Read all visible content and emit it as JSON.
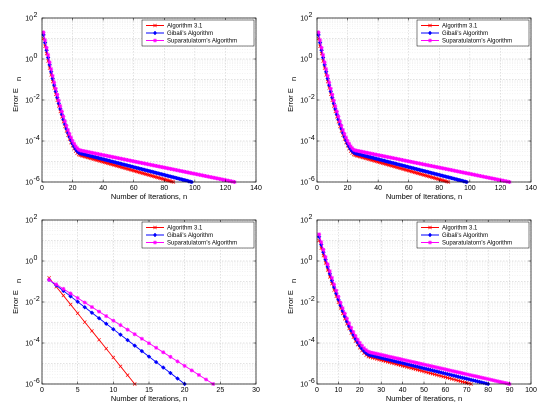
{
  "chart_data": [
    {
      "type": "line",
      "xlabel": "Number of Iterations, n",
      "ylabel": "Error E",
      "ylabel_sub": "n",
      "yscale": "log",
      "xlim": [
        0,
        140
      ],
      "ylim_exp": [
        -6,
        2
      ],
      "xticks": [
        "0",
        "20",
        "40",
        "60",
        "80",
        "100",
        "120",
        "140"
      ],
      "yticks": [
        "10",
        "10",
        "10",
        "10",
        "10"
      ],
      "ytick_exps": [
        "-6",
        "-4",
        "-2",
        "0",
        "2"
      ],
      "grid": true,
      "legend_position": "top-right",
      "legend": [
        "Algorithm 3.1",
        "Gibali's Algorithm",
        "Suparatulatorn's Algorithm"
      ],
      "series": [
        {
          "name": "Algorithm 3.1",
          "color": "#ff0000",
          "marker": "x",
          "n": 86,
          "start": 10.0,
          "knee_n": 25,
          "knee": 2e-05,
          "end": 1e-06
        },
        {
          "name": "Gibali's Algorithm",
          "color": "#0000ff",
          "marker": "diamond",
          "n": 98,
          "start": 15.0,
          "knee_n": 25,
          "knee": 2.5e-05,
          "end": 1e-06
        },
        {
          "name": "Suparatulatorn's Algorithm",
          "color": "#ff00ff",
          "marker": "star",
          "n": 126,
          "start": 20.0,
          "knee_n": 25,
          "knee": 3.5e-05,
          "end": 1e-06
        }
      ]
    },
    {
      "type": "line",
      "xlabel": "Number of Iterations, n",
      "ylabel": "Error E",
      "ylabel_sub": "n",
      "yscale": "log",
      "xlim": [
        0,
        140
      ],
      "ylim_exp": [
        -6,
        2
      ],
      "xticks": [
        "0",
        "20",
        "40",
        "60",
        "80",
        "100",
        "120",
        "140"
      ],
      "yticks": [
        "10",
        "10",
        "10",
        "10",
        "10"
      ],
      "ytick_exps": [
        "-6",
        "-4",
        "-2",
        "0",
        "2"
      ],
      "grid": true,
      "legend_position": "top-right",
      "legend": [
        "Algorithm 3.1",
        "Gibali's Algorithm",
        "Suparatulatorn's Algorithm"
      ],
      "series": [
        {
          "name": "Algorithm 3.1",
          "color": "#ff0000",
          "marker": "x",
          "n": 86,
          "start": 10.0,
          "knee_n": 25,
          "knee": 2e-05,
          "end": 1e-06
        },
        {
          "name": "Gibali's Algorithm",
          "color": "#0000ff",
          "marker": "diamond",
          "n": 98,
          "start": 15.0,
          "knee_n": 25,
          "knee": 2.5e-05,
          "end": 1e-06
        },
        {
          "name": "Suparatulatorn's Algorithm",
          "color": "#ff00ff",
          "marker": "star",
          "n": 126,
          "start": 20.0,
          "knee_n": 25,
          "knee": 3.5e-05,
          "end": 1e-06
        }
      ]
    },
    {
      "type": "line",
      "xlabel": "Number of Iterations, n",
      "ylabel": "Error E",
      "ylabel_sub": "n",
      "yscale": "log",
      "xlim": [
        0,
        30
      ],
      "ylim_exp": [
        -6,
        2
      ],
      "xticks": [
        "0",
        "5",
        "10",
        "15",
        "20",
        "25",
        "30"
      ],
      "yticks": [
        "10",
        "10",
        "10",
        "10",
        "10"
      ],
      "ytick_exps": [
        "-6",
        "-4",
        "-2",
        "0",
        "2"
      ],
      "grid": true,
      "legend_position": "top-right",
      "legend": [
        "Algorithm 3.1",
        "Gibali's Algorithm",
        "Suparatulatorn's Algorithm"
      ],
      "series": [
        {
          "name": "Algorithm 3.1",
          "color": "#ff0000",
          "marker": "x",
          "n": 13,
          "start": 0.15,
          "knee_n": 13,
          "knee": 1e-06,
          "end": 1e-06
        },
        {
          "name": "Gibali's Algorithm",
          "color": "#0000ff",
          "marker": "diamond",
          "n": 20,
          "start": 0.12,
          "knee_n": 20,
          "knee": 1e-06,
          "end": 1e-06
        },
        {
          "name": "Suparatulatorn's Algorithm",
          "color": "#ff00ff",
          "marker": "star",
          "n": 24,
          "start": 0.12,
          "knee_n": 24,
          "knee": 1e-06,
          "end": 1e-06
        }
      ]
    },
    {
      "type": "line",
      "xlabel": "Number of Iterations, n",
      "ylabel": "Error E",
      "ylabel_sub": "n",
      "yscale": "log",
      "xlim": [
        0,
        100
      ],
      "ylim_exp": [
        -6,
        2
      ],
      "xticks": [
        "0",
        "10",
        "20",
        "30",
        "40",
        "50",
        "60",
        "70",
        "80",
        "90",
        "100"
      ],
      "yticks": [
        "10",
        "10",
        "10",
        "10",
        "10"
      ],
      "ytick_exps": [
        "-6",
        "-4",
        "-2",
        "0",
        "2"
      ],
      "grid": true,
      "legend_position": "top-right",
      "legend": [
        "Algorithm 3.1",
        "Gibali's Algorithm",
        "Suparatulatorn's Algorithm"
      ],
      "series": [
        {
          "name": "Algorithm 3.1",
          "color": "#ff0000",
          "marker": "x",
          "n": 72,
          "start": 10.0,
          "knee_n": 25,
          "knee": 2e-05,
          "end": 1e-06
        },
        {
          "name": "Gibali's Algorithm",
          "color": "#0000ff",
          "marker": "diamond",
          "n": 80,
          "start": 15.0,
          "knee_n": 25,
          "knee": 2.5e-05,
          "end": 1e-06
        },
        {
          "name": "Suparatulatorn's Algorithm",
          "color": "#ff00ff",
          "marker": "star",
          "n": 90,
          "start": 20.0,
          "knee_n": 25,
          "knee": 3.5e-05,
          "end": 1e-06
        }
      ]
    }
  ]
}
